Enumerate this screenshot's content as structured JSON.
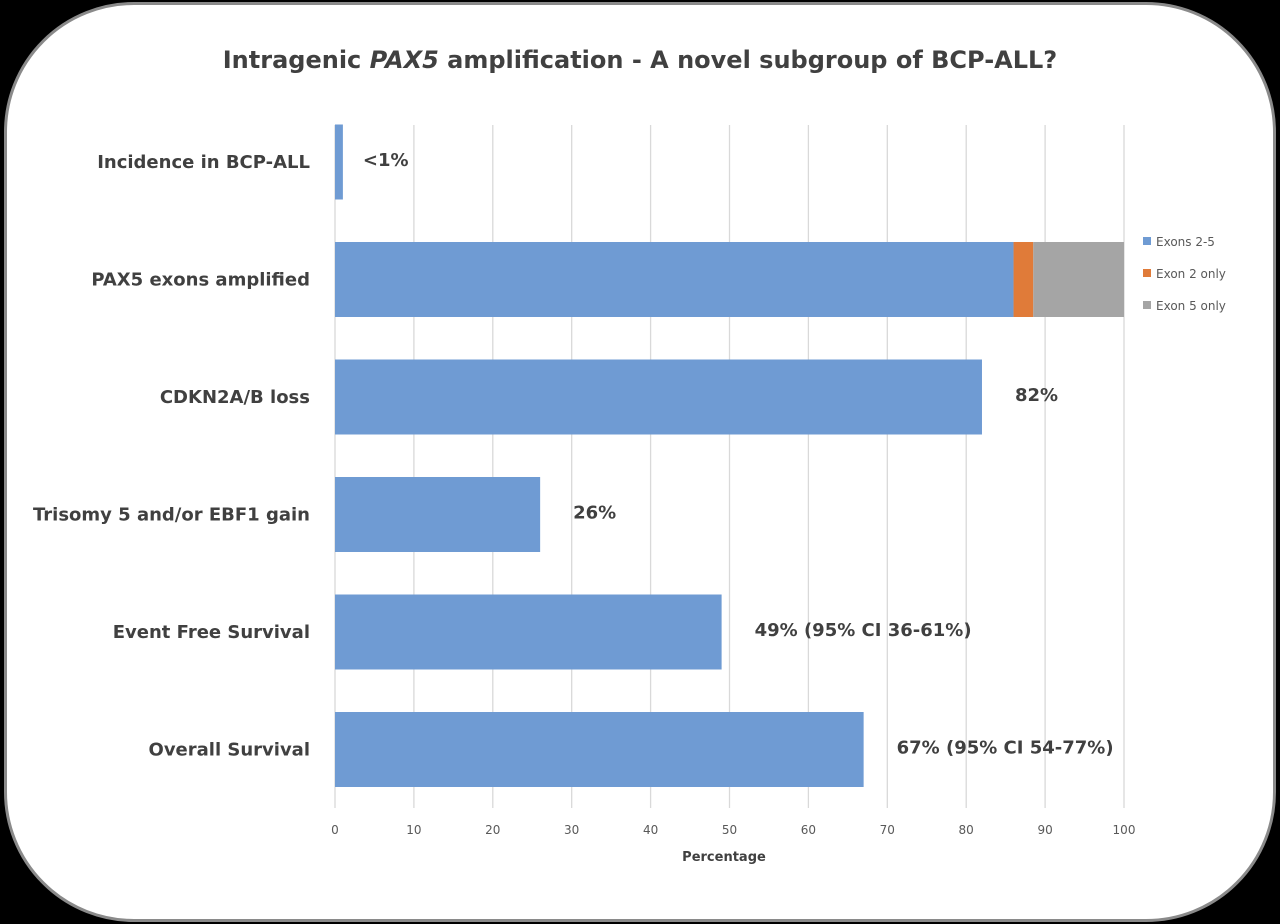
{
  "chart_data": {
    "type": "bar",
    "orientation": "horizontal",
    "stacked": true,
    "title": "Intragenic PAX5 amplification - A novel subgroup of BCP-ALL?",
    "title_parts": {
      "pre": "Intragenic ",
      "italic": "PAX5",
      "post": " amplification - A novel subgroup of BCP-ALL?"
    },
    "categories": [
      "Incidence in BCP-ALL",
      "PAX5 exons amplified",
      "CDKN2A/B loss",
      "Trisomy 5 and/or EBF1 gain",
      "Event Free Survival",
      "Overall Survival"
    ],
    "series": [
      {
        "name": "Exons 2-5",
        "color": "#6f9bd3",
        "values": [
          1,
          86,
          82,
          26,
          49,
          67
        ]
      },
      {
        "name": "Exon 2 only",
        "color": "#e07b39",
        "values": [
          0,
          2.5,
          0,
          0,
          0,
          0
        ]
      },
      {
        "name": "Exon 5 only",
        "color": "#a5a5a5",
        "values": [
          0,
          11.5,
          0,
          0,
          0,
          0
        ]
      }
    ],
    "data_labels": [
      "<1%",
      "",
      "82%",
      "26%",
      "49% (95% CI 36-61%)",
      "67% (95% CI 54-77%)"
    ],
    "xlabel": "Percentage",
    "ylabel": "",
    "xlim": [
      0,
      100
    ],
    "xticks": [
      0,
      10,
      20,
      30,
      40,
      50,
      60,
      70,
      80,
      90,
      100
    ],
    "grid": true,
    "legend_position": "right"
  }
}
